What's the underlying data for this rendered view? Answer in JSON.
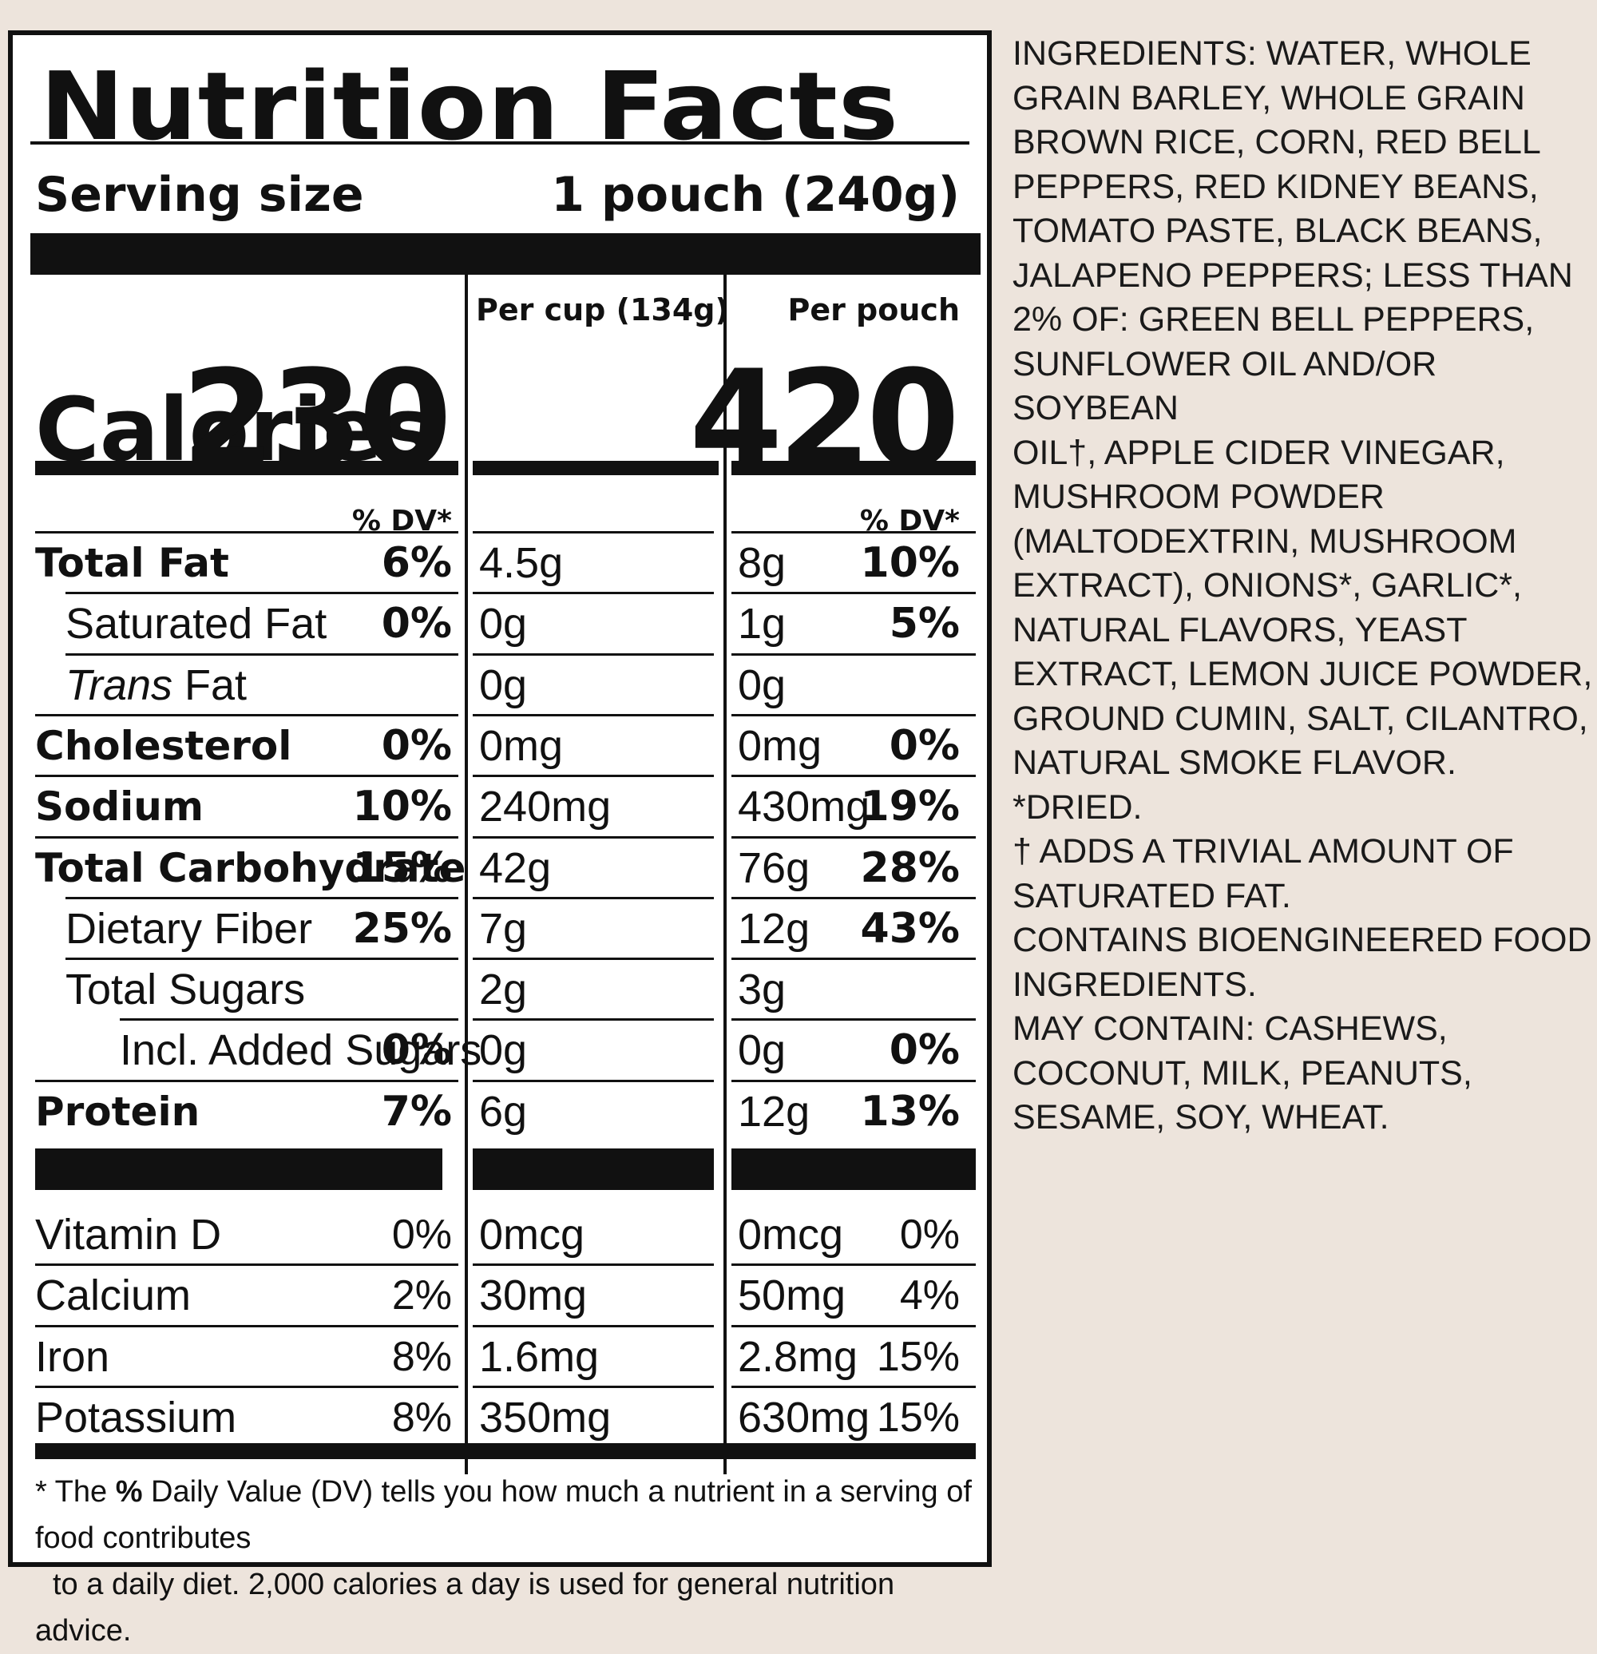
{
  "label": {
    "title": "Nutrition Facts",
    "serving_size_label": "Serving size",
    "serving_size_value": "1 pouch (240g)",
    "col1_header": "Per cup (134g)",
    "col2_header": "Per pouch",
    "calories_label": "Calories",
    "calories_col1": "230",
    "calories_col2": "420",
    "dv_header": "% DV*",
    "rows": [
      {
        "name": "Total Fat",
        "a1": "4.5g",
        "p1": "6%",
        "a2": "8g",
        "p2": "10%"
      },
      {
        "name": "Saturated Fat",
        "a1": "0g",
        "p1": "0%",
        "a2": "1g",
        "p2": "5%"
      },
      {
        "name_italic": "Trans",
        "name_rest": " Fat",
        "a1": "0g",
        "p1": "",
        "a2": "0g",
        "p2": ""
      },
      {
        "name": "Cholesterol",
        "a1": "0mg",
        "p1": "0%",
        "a2": "0mg",
        "p2": "0%"
      },
      {
        "name": "Sodium",
        "a1": "240mg",
        "p1": "10%",
        "a2": "430mg",
        "p2": "19%"
      },
      {
        "name": "Total Carbohydrate",
        "a1": "42g",
        "p1": "15%",
        "a2": "76g",
        "p2": "28%"
      },
      {
        "name": "Dietary Fiber",
        "a1": "7g",
        "p1": "25%",
        "a2": "12g",
        "p2": "43%"
      },
      {
        "name": "Total Sugars",
        "a1": "2g",
        "p1": "",
        "a2": "3g",
        "p2": ""
      },
      {
        "name": "Incl. Added Sugars",
        "a1": "0g",
        "p1": "0%",
        "a2": "0g",
        "p2": "0%"
      },
      {
        "name": "Protein",
        "a1": "6g",
        "p1": "7%",
        "a2": "12g",
        "p2": "13%"
      }
    ],
    "micros": [
      {
        "name": "Vitamin D",
        "a1": "0mcg",
        "p1": "0%",
        "a2": "0mcg",
        "p2": "0%"
      },
      {
        "name": "Calcium",
        "a1": "30mg",
        "p1": "2%",
        "a2": "50mg",
        "p2": "4%"
      },
      {
        "name": "Iron",
        "a1": "1.6mg",
        "p1": "8%",
        "a2": "2.8mg",
        "p2": "15%"
      },
      {
        "name": "Potassium",
        "a1": "350mg",
        "p1": "8%",
        "a2": "630mg",
        "p2": "15%"
      }
    ],
    "footnote_star": "* The ",
    "footnote_bold": "%",
    "footnote_line1_rest": " Daily Value (DV) tells you how much a nutrient in a serving of food contributes",
    "footnote_line2": "to a daily diet. 2,000 calories a day is used for general nutrition advice."
  },
  "ingredients": {
    "text": "INGREDIENTS: WATER, WHOLE\nGRAIN BARLEY, WHOLE GRAIN\nBROWN RICE, CORN, RED BELL\nPEPPERS, RED KIDNEY BEANS,\nTOMATO PASTE, BLACK BEANS,\nJALAPENO PEPPERS; LESS THAN\n2% OF: GREEN BELL PEPPERS,\nSUNFLOWER OIL AND/OR SOYBEAN\nOIL†, APPLE CIDER VINEGAR,\nMUSHROOM POWDER\n(MALTODEXTRIN, MUSHROOM\nEXTRACT), ONIONS*, GARLIC*,\nNATURAL FLAVORS, YEAST\nEXTRACT, LEMON JUICE POWDER,\nGROUND CUMIN, SALT, CILANTRO,\nNATURAL SMOKE FLAVOR.\n*DRIED.\n† ADDS A TRIVIAL AMOUNT OF\nSATURATED FAT.\nCONTAINS BIOENGINEERED FOOD\nINGREDIENTS.\nMAY CONTAIN: CASHEWS,\nCOCONUT, MILK, PEANUTS,\nSESAME, SOY, WHEAT."
  }
}
